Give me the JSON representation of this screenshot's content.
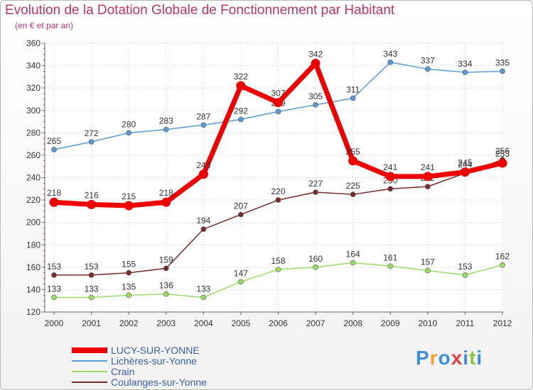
{
  "chart_data": {
    "type": "line",
    "title": "Evolution de la Dotation Globale de Fonctionnement par Habitant",
    "subtitle": "(en € et par an)",
    "xlabel": "",
    "ylabel": "",
    "x": [
      "2000",
      "2001",
      "2002",
      "2003",
      "2004",
      "2005",
      "2006",
      "2007",
      "2008",
      "2009",
      "2010",
      "2011",
      "2012"
    ],
    "ylim": [
      120,
      360
    ],
    "yticks": [
      120,
      140,
      160,
      180,
      200,
      220,
      240,
      260,
      280,
      300,
      320,
      340,
      360
    ],
    "grid": true,
    "series": [
      {
        "name": "LUCY-SUR-YONNE",
        "color": "#ee0000",
        "values": [
          218,
          216,
          215,
          218,
          243,
          322,
          307,
          342,
          255,
          241,
          241,
          245,
          253
        ]
      },
      {
        "name": "Lichères-sur-Yonne",
        "color": "#5a9bd5",
        "values": [
          265,
          272,
          280,
          283,
          287,
          292,
          299,
          305,
          311,
          343,
          337,
          334,
          335
        ]
      },
      {
        "name": "Crain",
        "color": "#99dd66",
        "values": [
          133,
          133,
          135,
          136,
          133,
          147,
          158,
          160,
          164,
          161,
          157,
          153,
          162
        ]
      },
      {
        "name": "Coulanges-sur-Yonne",
        "color": "#7a2a2a",
        "values": [
          153,
          153,
          155,
          159,
          194,
          207,
          220,
          227,
          225,
          230,
          232,
          244,
          256
        ]
      }
    ]
  },
  "logo": {
    "letters": [
      "P",
      "r",
      "o",
      "x",
      "i",
      "t",
      "i"
    ],
    "colors": [
      "#3a8fd8",
      "#f0a030",
      "#3a8fd8",
      "#e84040",
      "#3a8fd8",
      "#8cc83c",
      "#3a8fd8"
    ]
  }
}
